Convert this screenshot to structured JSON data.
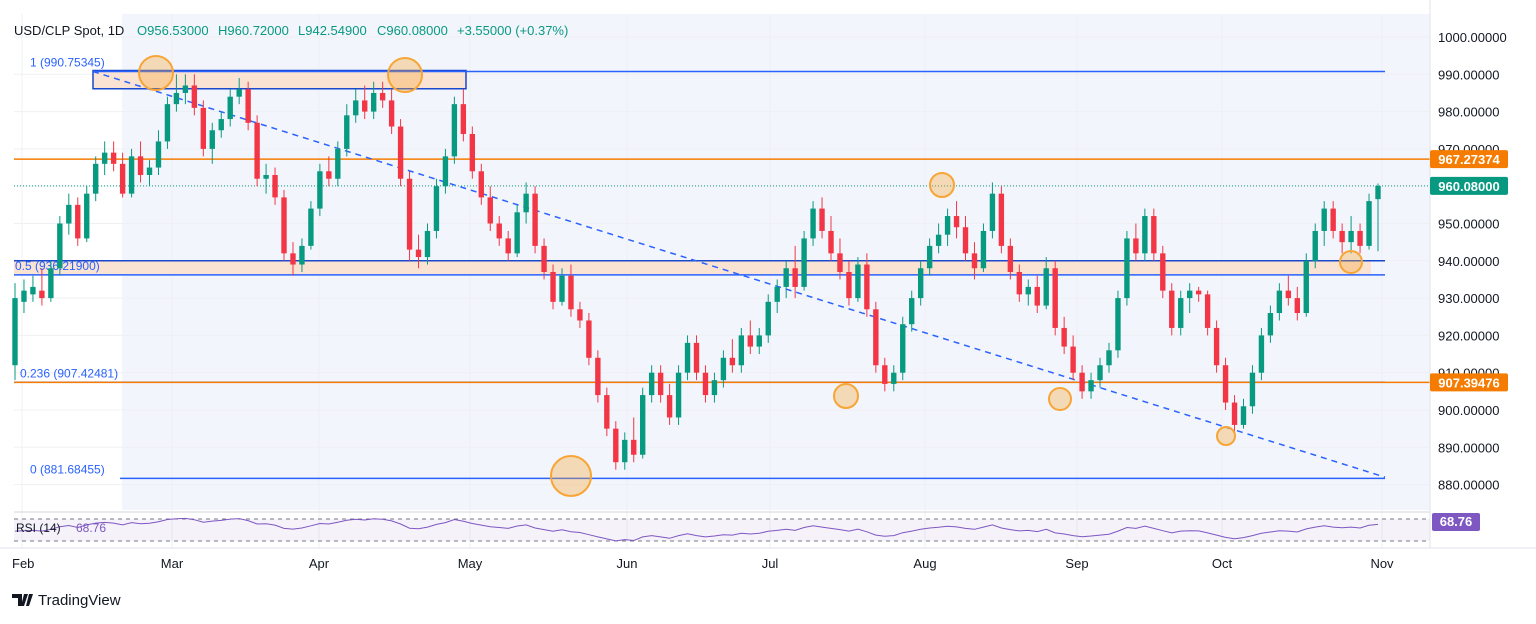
{
  "header": {
    "symbol": "USD/CLP Spot, 1D",
    "open": "O956.53000",
    "high": "H960.72000",
    "low": "L942.54900",
    "close": "C960.08000",
    "change": "+3.55000 (+0.37%)"
  },
  "y_axis_labels": [
    "1000.00000",
    "990.00000",
    "980.00000",
    "970.00000",
    "960.00000",
    "950.00000",
    "940.00000",
    "930.00000",
    "920.00000",
    "910.00000",
    "900.00000",
    "890.00000",
    "880.00000"
  ],
  "price_badges": [
    {
      "text": "967.27374",
      "price": 967.27374,
      "color": "#f57c00"
    },
    {
      "text": "960.08000",
      "price": 960.08,
      "color": "#089981"
    },
    {
      "text": "907.39476",
      "price": 907.39476,
      "color": "#f57c00"
    }
  ],
  "fib_levels": [
    {
      "label": "1 (990.75345)",
      "price": 990.75345
    },
    {
      "label": "0.5 (936.21900)",
      "price": 936.219
    },
    {
      "label": "0.236 (907.42481)",
      "price": 907.42481
    },
    {
      "label": "0 (881.68455)",
      "price": 881.68455
    }
  ],
  "horizontal_lines": [
    {
      "price": 967.27374,
      "color": "#f57c00"
    },
    {
      "price": 907.39476,
      "color": "#f57c00"
    }
  ],
  "x_axis_labels": [
    "Feb",
    "Mar",
    "Apr",
    "May",
    "Jun",
    "Jul",
    "Aug",
    "Sep",
    "Oct",
    "Nov"
  ],
  "rsi": {
    "label": "RSI (14)",
    "value": "68.76",
    "color": "#7e57c2"
  },
  "brand": "TradingView",
  "colors": {
    "up": "#089981",
    "down": "#f23645",
    "fib": "#2962ff",
    "zone": "#fbe3d4",
    "circle": "#f7a535",
    "trend": "#2962ff"
  },
  "chart_data": {
    "type": "candlestick",
    "title": "USD/CLP Spot, 1D",
    "ylim": [
      875,
      1005
    ],
    "annotations": [
      "resistance zone 986-990",
      "support zone 936.2-940",
      "descending dashed trendline from 990.75 to 882",
      "orange circles mark swing highs/lows"
    ],
    "candles": [
      {
        "o": 912,
        "h": 934,
        "l": 908,
        "c": 930
      },
      {
        "o": 929,
        "h": 935,
        "l": 926,
        "c": 932
      },
      {
        "o": 931,
        "h": 936,
        "l": 929,
        "c": 933
      },
      {
        "o": 932,
        "h": 938,
        "l": 928,
        "c": 930
      },
      {
        "o": 930,
        "h": 940,
        "l": 929,
        "c": 938
      },
      {
        "o": 938,
        "h": 952,
        "l": 936,
        "c": 950
      },
      {
        "o": 950,
        "h": 958,
        "l": 947,
        "c": 955
      },
      {
        "o": 955,
        "h": 957,
        "l": 944,
        "c": 946
      },
      {
        "o": 946,
        "h": 960,
        "l": 945,
        "c": 958
      },
      {
        "o": 958,
        "h": 968,
        "l": 956,
        "c": 966
      },
      {
        "o": 966,
        "h": 972,
        "l": 963,
        "c": 969
      },
      {
        "o": 969,
        "h": 972,
        "l": 964,
        "c": 966
      },
      {
        "o": 966,
        "h": 969,
        "l": 957,
        "c": 958
      },
      {
        "o": 958,
        "h": 970,
        "l": 957,
        "c": 968
      },
      {
        "o": 968,
        "h": 972,
        "l": 961,
        "c": 963
      },
      {
        "o": 963,
        "h": 967,
        "l": 960,
        "c": 965
      },
      {
        "o": 965,
        "h": 975,
        "l": 963,
        "c": 972
      },
      {
        "o": 972,
        "h": 984,
        "l": 970,
        "c": 982
      },
      {
        "o": 982,
        "h": 990,
        "l": 980,
        "c": 985
      },
      {
        "o": 985,
        "h": 990,
        "l": 982,
        "c": 987
      },
      {
        "o": 987,
        "h": 990,
        "l": 979,
        "c": 981
      },
      {
        "o": 981,
        "h": 983,
        "l": 968,
        "c": 970
      },
      {
        "o": 970,
        "h": 977,
        "l": 966,
        "c": 975
      },
      {
        "o": 975,
        "h": 980,
        "l": 973,
        "c": 978
      },
      {
        "o": 978,
        "h": 986,
        "l": 976,
        "c": 984
      },
      {
        "o": 984,
        "h": 989,
        "l": 982,
        "c": 986
      },
      {
        "o": 986,
        "h": 988,
        "l": 975,
        "c": 977
      },
      {
        "o": 977,
        "h": 979,
        "l": 960,
        "c": 962
      },
      {
        "o": 962,
        "h": 966,
        "l": 958,
        "c": 963
      },
      {
        "o": 963,
        "h": 965,
        "l": 955,
        "c": 957
      },
      {
        "o": 957,
        "h": 959,
        "l": 940,
        "c": 942
      },
      {
        "o": 942,
        "h": 945,
        "l": 936,
        "c": 939
      },
      {
        "o": 939,
        "h": 946,
        "l": 937,
        "c": 944
      },
      {
        "o": 944,
        "h": 956,
        "l": 943,
        "c": 954
      },
      {
        "o": 954,
        "h": 966,
        "l": 952,
        "c": 964
      },
      {
        "o": 964,
        "h": 968,
        "l": 960,
        "c": 962
      },
      {
        "o": 962,
        "h": 972,
        "l": 960,
        "c": 970
      },
      {
        "o": 970,
        "h": 982,
        "l": 968,
        "c": 979
      },
      {
        "o": 979,
        "h": 986,
        "l": 977,
        "c": 983
      },
      {
        "o": 983,
        "h": 987,
        "l": 978,
        "c": 980
      },
      {
        "o": 980,
        "h": 988,
        "l": 978,
        "c": 985
      },
      {
        "o": 985,
        "h": 988,
        "l": 981,
        "c": 983
      },
      {
        "o": 983,
        "h": 986,
        "l": 974,
        "c": 976
      },
      {
        "o": 976,
        "h": 978,
        "l": 960,
        "c": 962
      },
      {
        "o": 962,
        "h": 964,
        "l": 940,
        "c": 943
      },
      {
        "o": 943,
        "h": 947,
        "l": 938,
        "c": 941
      },
      {
        "o": 941,
        "h": 950,
        "l": 939,
        "c": 948
      },
      {
        "o": 948,
        "h": 962,
        "l": 946,
        "c": 960
      },
      {
        "o": 960,
        "h": 970,
        "l": 958,
        "c": 968
      },
      {
        "o": 968,
        "h": 984,
        "l": 966,
        "c": 982
      },
      {
        "o": 982,
        "h": 986,
        "l": 972,
        "c": 974
      },
      {
        "o": 974,
        "h": 976,
        "l": 962,
        "c": 964
      },
      {
        "o": 964,
        "h": 966,
        "l": 955,
        "c": 957
      },
      {
        "o": 957,
        "h": 960,
        "l": 948,
        "c": 950
      },
      {
        "o": 950,
        "h": 952,
        "l": 944,
        "c": 946
      },
      {
        "o": 946,
        "h": 948,
        "l": 940,
        "c": 942
      },
      {
        "o": 942,
        "h": 955,
        "l": 941,
        "c": 953
      },
      {
        "o": 953,
        "h": 961,
        "l": 950,
        "c": 958
      },
      {
        "o": 958,
        "h": 960,
        "l": 942,
        "c": 944
      },
      {
        "o": 944,
        "h": 946,
        "l": 935,
        "c": 937
      },
      {
        "o": 937,
        "h": 939,
        "l": 927,
        "c": 929
      },
      {
        "o": 929,
        "h": 938,
        "l": 928,
        "c": 936
      },
      {
        "o": 936,
        "h": 939,
        "l": 925,
        "c": 927
      },
      {
        "o": 927,
        "h": 929,
        "l": 922,
        "c": 924
      },
      {
        "o": 924,
        "h": 926,
        "l": 912,
        "c": 914
      },
      {
        "o": 914,
        "h": 916,
        "l": 902,
        "c": 904
      },
      {
        "o": 904,
        "h": 906,
        "l": 893,
        "c": 895
      },
      {
        "o": 895,
        "h": 897,
        "l": 884,
        "c": 886
      },
      {
        "o": 886,
        "h": 894,
        "l": 884,
        "c": 892
      },
      {
        "o": 892,
        "h": 898,
        "l": 886,
        "c": 888
      },
      {
        "o": 888,
        "h": 906,
        "l": 887,
        "c": 904
      },
      {
        "o": 904,
        "h": 912,
        "l": 902,
        "c": 910
      },
      {
        "o": 910,
        "h": 912,
        "l": 902,
        "c": 904
      },
      {
        "o": 904,
        "h": 907,
        "l": 896,
        "c": 898
      },
      {
        "o": 898,
        "h": 912,
        "l": 896,
        "c": 910
      },
      {
        "o": 910,
        "h": 920,
        "l": 908,
        "c": 918
      },
      {
        "o": 918,
        "h": 920,
        "l": 908,
        "c": 910
      },
      {
        "o": 910,
        "h": 912,
        "l": 902,
        "c": 904
      },
      {
        "o": 904,
        "h": 910,
        "l": 902,
        "c": 908
      },
      {
        "o": 908,
        "h": 916,
        "l": 906,
        "c": 914
      },
      {
        "o": 914,
        "h": 919,
        "l": 910,
        "c": 912
      },
      {
        "o": 912,
        "h": 922,
        "l": 910,
        "c": 920
      },
      {
        "o": 920,
        "h": 924,
        "l": 915,
        "c": 917
      },
      {
        "o": 917,
        "h": 922,
        "l": 915,
        "c": 920
      },
      {
        "o": 920,
        "h": 931,
        "l": 918,
        "c": 929
      },
      {
        "o": 929,
        "h": 935,
        "l": 926,
        "c": 933
      },
      {
        "o": 933,
        "h": 940,
        "l": 930,
        "c": 938
      },
      {
        "o": 938,
        "h": 944,
        "l": 930,
        "c": 933
      },
      {
        "o": 933,
        "h": 948,
        "l": 932,
        "c": 946
      },
      {
        "o": 946,
        "h": 956,
        "l": 944,
        "c": 954
      },
      {
        "o": 954,
        "h": 957,
        "l": 946,
        "c": 948
      },
      {
        "o": 948,
        "h": 952,
        "l": 940,
        "c": 942
      },
      {
        "o": 942,
        "h": 946,
        "l": 935,
        "c": 937
      },
      {
        "o": 937,
        "h": 940,
        "l": 928,
        "c": 930
      },
      {
        "o": 930,
        "h": 941,
        "l": 929,
        "c": 939
      },
      {
        "o": 939,
        "h": 942,
        "l": 925,
        "c": 927
      },
      {
        "o": 927,
        "h": 929,
        "l": 910,
        "c": 912
      },
      {
        "o": 912,
        "h": 914,
        "l": 905,
        "c": 907
      },
      {
        "o": 907,
        "h": 912,
        "l": 905,
        "c": 910
      },
      {
        "o": 910,
        "h": 925,
        "l": 908,
        "c": 923
      },
      {
        "o": 923,
        "h": 932,
        "l": 921,
        "c": 930
      },
      {
        "o": 930,
        "h": 940,
        "l": 928,
        "c": 938
      },
      {
        "o": 938,
        "h": 946,
        "l": 936,
        "c": 944
      },
      {
        "o": 944,
        "h": 950,
        "l": 942,
        "c": 947
      },
      {
        "o": 947,
        "h": 954,
        "l": 944,
        "c": 952
      },
      {
        "o": 952,
        "h": 956,
        "l": 946,
        "c": 949
      },
      {
        "o": 949,
        "h": 952,
        "l": 940,
        "c": 942
      },
      {
        "o": 942,
        "h": 945,
        "l": 935,
        "c": 938
      },
      {
        "o": 938,
        "h": 950,
        "l": 937,
        "c": 948
      },
      {
        "o": 948,
        "h": 961,
        "l": 946,
        "c": 958
      },
      {
        "o": 958,
        "h": 960,
        "l": 942,
        "c": 944
      },
      {
        "o": 944,
        "h": 946,
        "l": 935,
        "c": 937
      },
      {
        "o": 937,
        "h": 939,
        "l": 929,
        "c": 931
      },
      {
        "o": 931,
        "h": 935,
        "l": 928,
        "c": 933
      },
      {
        "o": 933,
        "h": 936,
        "l": 926,
        "c": 928
      },
      {
        "o": 928,
        "h": 941,
        "l": 927,
        "c": 938
      },
      {
        "o": 938,
        "h": 940,
        "l": 920,
        "c": 922
      },
      {
        "o": 922,
        "h": 925,
        "l": 915,
        "c": 917
      },
      {
        "o": 917,
        "h": 920,
        "l": 908,
        "c": 910
      },
      {
        "o": 910,
        "h": 912,
        "l": 903,
        "c": 905
      },
      {
        "o": 905,
        "h": 910,
        "l": 903,
        "c": 908
      },
      {
        "o": 908,
        "h": 914,
        "l": 906,
        "c": 912
      },
      {
        "o": 912,
        "h": 918,
        "l": 910,
        "c": 916
      },
      {
        "o": 916,
        "h": 932,
        "l": 914,
        "c": 930
      },
      {
        "o": 930,
        "h": 948,
        "l": 928,
        "c": 946
      },
      {
        "o": 946,
        "h": 950,
        "l": 940,
        "c": 942
      },
      {
        "o": 942,
        "h": 954,
        "l": 940,
        "c": 952
      },
      {
        "o": 952,
        "h": 954,
        "l": 940,
        "c": 942
      },
      {
        "o": 942,
        "h": 944,
        "l": 930,
        "c": 932
      },
      {
        "o": 932,
        "h": 934,
        "l": 920,
        "c": 922
      },
      {
        "o": 922,
        "h": 932,
        "l": 920,
        "c": 930
      },
      {
        "o": 930,
        "h": 934,
        "l": 926,
        "c": 932
      },
      {
        "o": 932,
        "h": 933,
        "l": 929,
        "c": 931
      },
      {
        "o": 931,
        "h": 932,
        "l": 920,
        "c": 922
      },
      {
        "o": 922,
        "h": 924,
        "l": 910,
        "c": 912
      },
      {
        "o": 912,
        "h": 914,
        "l": 900,
        "c": 902
      },
      {
        "o": 902,
        "h": 904,
        "l": 894,
        "c": 896
      },
      {
        "o": 896,
        "h": 903,
        "l": 895,
        "c": 901
      },
      {
        "o": 901,
        "h": 912,
        "l": 899,
        "c": 910
      },
      {
        "o": 910,
        "h": 922,
        "l": 908,
        "c": 920
      },
      {
        "o": 920,
        "h": 928,
        "l": 918,
        "c": 926
      },
      {
        "o": 926,
        "h": 934,
        "l": 924,
        "c": 932
      },
      {
        "o": 932,
        "h": 936,
        "l": 928,
        "c": 930
      },
      {
        "o": 930,
        "h": 933,
        "l": 924,
        "c": 926
      },
      {
        "o": 926,
        "h": 942,
        "l": 925,
        "c": 940
      },
      {
        "o": 940,
        "h": 950,
        "l": 938,
        "c": 948
      },
      {
        "o": 948,
        "h": 956,
        "l": 944,
        "c": 954
      },
      {
        "o": 954,
        "h": 956,
        "l": 946,
        "c": 948
      },
      {
        "o": 948,
        "h": 950,
        "l": 942,
        "c": 945
      },
      {
        "o": 945,
        "h": 952,
        "l": 942,
        "c": 948
      },
      {
        "o": 948,
        "h": 950,
        "l": 942,
        "c": 944
      },
      {
        "o": 944,
        "h": 958,
        "l": 943,
        "c": 956
      },
      {
        "o": 956.53,
        "h": 960.72,
        "l": 942.549,
        "c": 960.08
      }
    ],
    "rsi_value": 68.76
  }
}
